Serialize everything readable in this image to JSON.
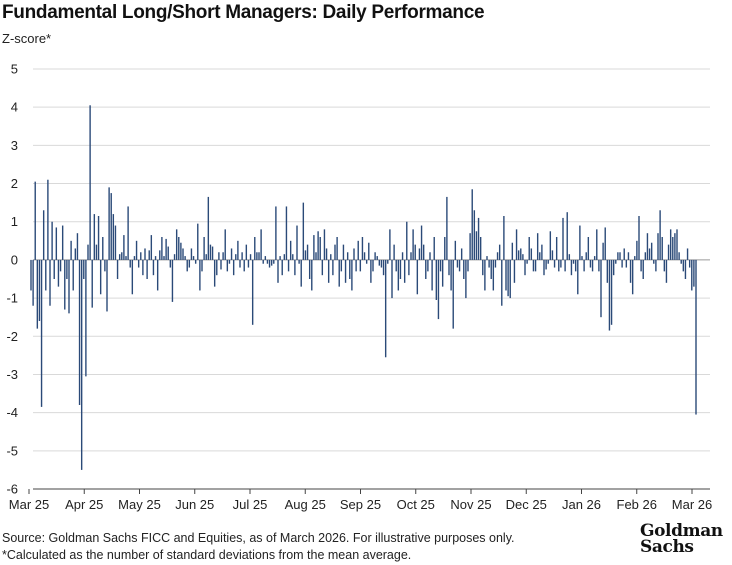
{
  "chart_data": {
    "type": "bar",
    "title": "Fundamental Long/Short Managers: Daily Performance",
    "ylabel": "Z-score*",
    "xlabel": "",
    "ylim": [
      -6,
      5
    ],
    "yticks": [
      -6,
      -5,
      -4,
      -3,
      -2,
      -1,
      0,
      1,
      2,
      3,
      4,
      5
    ],
    "xticks": [
      "Mar 25",
      "Apr 25",
      "May 25",
      "Jun 25",
      "Jul 25",
      "Aug 25",
      "Sep 25",
      "Oct 25",
      "Nov 25",
      "Dec 25",
      "Jan 26",
      "Feb 26",
      "Mar 26"
    ],
    "grid": "horizontal",
    "bar_color": "#2b4a78",
    "series": [
      {
        "name": "Daily Z-score",
        "values": [
          -0.8,
          -1.2,
          2.05,
          -1.8,
          -1.6,
          -3.85,
          1.3,
          -0.8,
          2.1,
          -1.2,
          1.0,
          -0.5,
          0.85,
          -0.7,
          -0.3,
          0.9,
          -1.3,
          -0.5,
          -1.4,
          0.5,
          -0.8,
          0.3,
          0.7,
          -3.8,
          -5.5,
          -0.5,
          -3.05,
          0.4,
          4.05,
          -1.25,
          1.2,
          0.4,
          1.15,
          -0.9,
          0.6,
          -0.3,
          -1.35,
          1.9,
          1.75,
          1.2,
          0.9,
          -0.5,
          0.15,
          0.2,
          0.65,
          0.1,
          1.4,
          -0.2,
          -0.9,
          0.1,
          0.5,
          -0.2,
          0.2,
          -0.4,
          0.3,
          -0.5,
          0.25,
          0.65,
          -0.4,
          0.1,
          -0.8,
          0.25,
          0.6,
          0.1,
          0.55,
          0.35,
          -0.2,
          -1.1,
          0.15,
          0.8,
          0.6,
          0.45,
          0.3,
          0.1,
          -0.3,
          -0.2,
          0.3,
          0.1,
          -0.1,
          0.95,
          -0.8,
          -0.3,
          0.6,
          0.15,
          1.65,
          0.4,
          0.35,
          -0.7,
          -0.4,
          0.2,
          -0.25,
          0.2,
          0.8,
          -0.3,
          -0.1,
          0.3,
          -0.4,
          0.15,
          0.5,
          -0.2,
          0.2,
          -0.3,
          0.4,
          -0.2,
          0.15,
          -1.7,
          0.6,
          0.2,
          0.2,
          0.8,
          -0.1,
          0.1,
          -0.1,
          -0.2,
          -0.15,
          -0.1,
          1.4,
          -0.6,
          0.1,
          -0.4,
          0.15,
          1.4,
          -0.3,
          0.5,
          0.15,
          -0.4,
          0.9,
          -0.1,
          -0.7,
          1.5,
          0.25,
          0.4,
          -0.5,
          -0.8,
          0.65,
          0.2,
          0.75,
          0.6,
          -0.4,
          0.8,
          0.3,
          -0.6,
          0.15,
          -0.4,
          0.4,
          0.6,
          -0.7,
          -0.3,
          0.4,
          -0.6,
          0.2,
          -0.5,
          -0.8,
          0.3,
          -0.3,
          0.5,
          -0.3,
          0.6,
          0.2,
          -0.1,
          0.45,
          -0.6,
          -0.3,
          0.2,
          0.1,
          -0.15,
          -0.2,
          -0.4,
          -2.55,
          -0.1,
          0.8,
          -1.0,
          0.4,
          -0.3,
          -0.8,
          -0.5,
          0.2,
          -0.6,
          1.0,
          -0.4,
          0.2,
          0.8,
          0.4,
          -0.9,
          0.3,
          0.9,
          0.4,
          -0.5,
          -0.3,
          0.2,
          -0.8,
          0.6,
          -1.05,
          -1.55,
          -0.3,
          -0.7,
          0.6,
          1.65,
          -0.4,
          -0.8,
          -1.8,
          0.5,
          -0.2,
          -0.3,
          0.3,
          -0.5,
          -1.0,
          -0.3,
          0.7,
          1.85,
          1.3,
          0.75,
          1.1,
          0.6,
          -0.4,
          -0.8,
          0.1,
          -0.2,
          -0.5,
          -0.8,
          -0.2,
          0.2,
          0.4,
          -1.2,
          1.15,
          -0.8,
          -0.95,
          -1.0,
          0.45,
          -0.6,
          0.8,
          0.25,
          0.3,
          0.15,
          -0.4,
          -0.1,
          0.6,
          0.3,
          -0.3,
          -0.3,
          0.7,
          0.2,
          0.4,
          -0.4,
          -0.25,
          -0.1,
          0.75,
          0.25,
          -0.2,
          0.6,
          -0.3,
          -0.2,
          1.1,
          -0.3,
          1.25,
          0.15,
          -0.4,
          -0.1,
          -0.3,
          -0.9,
          0.9,
          0.1,
          -0.3,
          0.2,
          0.6,
          -0.2,
          -0.3,
          0.1,
          0.8,
          -0.3,
          -1.5,
          0.45,
          0.85,
          -0.6,
          -1.85,
          -1.7,
          -0.4,
          -0.1,
          0.2,
          0.2,
          -0.2,
          0.3,
          -0.2,
          0.2,
          -0.6,
          -0.9,
          0.1,
          0.5,
          1.15,
          -0.3,
          -0.5,
          0.2,
          0.7,
          0.3,
          0.45,
          -0.1,
          -0.3,
          0.7,
          1.3,
          0.6,
          -0.3,
          -0.6,
          0.4,
          0.8,
          0.6,
          0.7,
          0.8,
          0.2,
          -0.1,
          -0.3,
          -0.5,
          0.3,
          -0.2,
          -0.8,
          -0.7,
          -4.05
        ]
      }
    ]
  },
  "footer": {
    "source": "Source: Goldman Sachs FICC and Equities, as of March 2026. For illustrative purposes only.",
    "note": "*Calculated as the number of standard deviations from the mean average."
  },
  "logo": {
    "line1": "Goldman",
    "line2": "Sachs"
  },
  "colors": {
    "bar": "#2b4a78",
    "grid": "#d9d9d9",
    "axis": "#444444"
  }
}
